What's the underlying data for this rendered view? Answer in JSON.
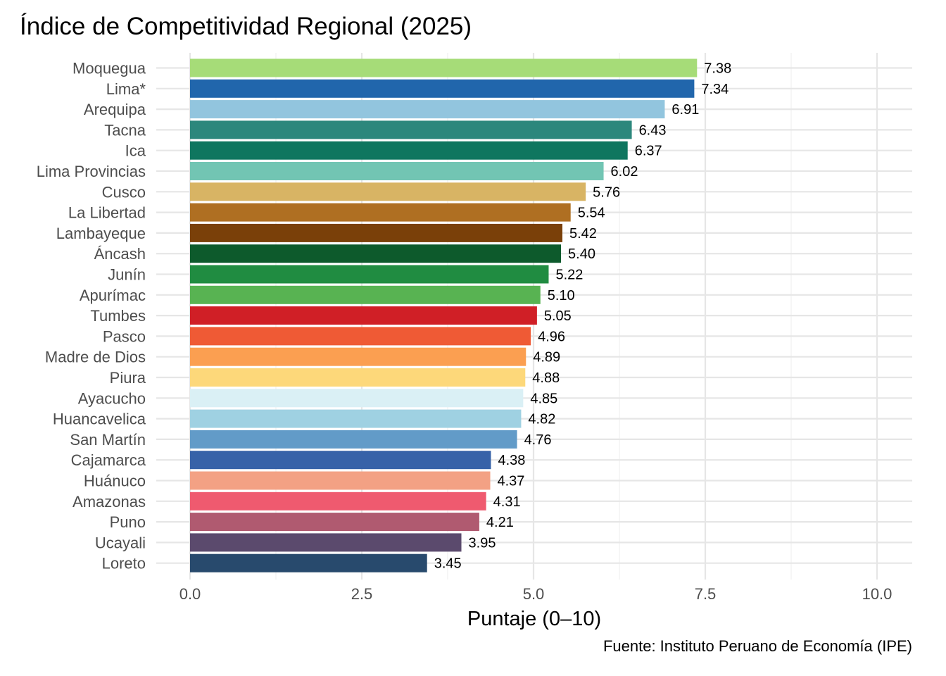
{
  "chart_data": {
    "type": "bar",
    "orientation": "horizontal",
    "title": "Índice de Competitividad Regional (2025)",
    "xlabel": "Puntaje (0–10)",
    "ylabel": "",
    "caption": "Fuente: Instituto Peruano de Economía (IPE)",
    "xlim": [
      0,
      10
    ],
    "xticks": [
      "0.0",
      "2.5",
      "5.0",
      "7.5",
      "10.0"
    ],
    "xtick_values": [
      0,
      2.5,
      5,
      7.5,
      10
    ],
    "grid": true,
    "legend": "none",
    "categories": [
      "Moquegua",
      "Lima*",
      "Arequipa",
      "Tacna",
      "Ica",
      "Lima Provincias",
      "Cusco",
      "La Libertad",
      "Lambayeque",
      "Áncash",
      "Junín",
      "Apurímac",
      "Tumbes",
      "Pasco",
      "Madre de Dios",
      "Piura",
      "Ayacucho",
      "Huancavelica",
      "San Martín",
      "Cajamarca",
      "Huánuco",
      "Amazonas",
      "Puno",
      "Ucayali",
      "Loreto"
    ],
    "values": [
      7.38,
      7.34,
      6.91,
      6.43,
      6.37,
      6.02,
      5.76,
      5.54,
      5.42,
      5.4,
      5.22,
      5.1,
      5.05,
      4.96,
      4.89,
      4.88,
      4.85,
      4.82,
      4.76,
      4.38,
      4.37,
      4.31,
      4.21,
      3.95,
      3.45
    ],
    "value_labels": [
      "7.38",
      "7.34",
      "6.91",
      "6.43",
      "6.37",
      "6.02",
      "5.76",
      "5.54",
      "5.42",
      "5.40",
      "5.22",
      "5.10",
      "5.05",
      "4.96",
      "4.89",
      "4.88",
      "4.85",
      "4.82",
      "4.76",
      "4.38",
      "4.37",
      "4.31",
      "4.21",
      "3.95",
      "3.45"
    ],
    "colors": [
      "#a6dc78",
      "#2166ac",
      "#92c5de",
      "#2c877c",
      "#0f765f",
      "#72c5b3",
      "#d8b464",
      "#af6f22",
      "#7a4009",
      "#0d5a2c",
      "#208c41",
      "#58b352",
      "#d01f26",
      "#ef5a35",
      "#fb9f51",
      "#fdd87a",
      "#daf0f5",
      "#9fd1e2",
      "#629bc8",
      "#3762a8",
      "#f3a184",
      "#ef5a6f",
      "#b05a70",
      "#5b4a6d",
      "#284a6d"
    ]
  }
}
